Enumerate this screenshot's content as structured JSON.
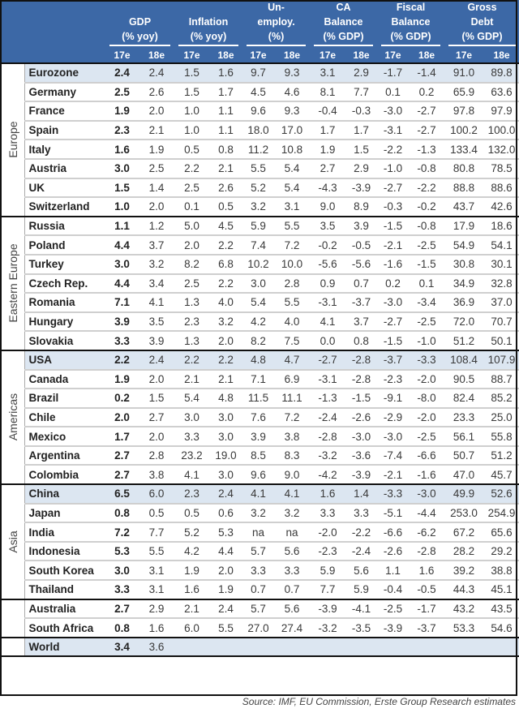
{
  "header": {
    "groups": [
      {
        "label": "GDP",
        "unit": "(% yoy)"
      },
      {
        "label": "Inflation",
        "unit": "(% yoy)"
      },
      {
        "label": "Un-\nemploy.",
        "unit": "(%)"
      },
      {
        "label": "CA\nBalance",
        "unit": "(% GDP)"
      },
      {
        "label": "Fiscal\nBalance",
        "unit": "(% GDP)"
      },
      {
        "label": "Gross\nDebt",
        "unit": "(% GDP)"
      }
    ],
    "years": [
      "17e",
      "18e"
    ]
  },
  "regions": [
    {
      "name": "Europe",
      "rows": [
        {
          "country": "Eurozone",
          "highlight": true,
          "values": [
            "2.4",
            "2.4",
            "1.5",
            "1.6",
            "9.7",
            "9.3",
            "3.1",
            "2.9",
            "-1.7",
            "-1.4",
            "91.0",
            "89.8"
          ]
        },
        {
          "country": "Germany",
          "values": [
            "2.5",
            "2.6",
            "1.5",
            "1.7",
            "4.5",
            "4.6",
            "8.1",
            "7.7",
            "0.1",
            "0.2",
            "65.9",
            "63.6"
          ]
        },
        {
          "country": "France",
          "values": [
            "1.9",
            "2.0",
            "1.0",
            "1.1",
            "9.6",
            "9.3",
            "-0.4",
            "-0.3",
            "-3.0",
            "-2.7",
            "97.8",
            "97.9"
          ]
        },
        {
          "country": "Spain",
          "values": [
            "2.3",
            "2.1",
            "1.0",
            "1.1",
            "18.0",
            "17.0",
            "1.7",
            "1.7",
            "-3.1",
            "-2.7",
            "100.2",
            "100.0"
          ]
        },
        {
          "country": "Italy",
          "values": [
            "1.6",
            "1.9",
            "0.5",
            "0.8",
            "11.2",
            "10.8",
            "1.9",
            "1.5",
            "-2.2",
            "-1.3",
            "133.4",
            "132.0"
          ]
        },
        {
          "country": "Austria",
          "values": [
            "3.0",
            "2.5",
            "2.2",
            "2.1",
            "5.5",
            "5.4",
            "2.7",
            "2.9",
            "-1.0",
            "-0.8",
            "80.8",
            "78.5"
          ]
        },
        {
          "country": "UK",
          "values": [
            "1.5",
            "1.4",
            "2.5",
            "2.6",
            "5.2",
            "5.4",
            "-4.3",
            "-3.9",
            "-2.7",
            "-2.2",
            "88.8",
            "88.6"
          ]
        },
        {
          "country": "Switzerland",
          "values": [
            "1.0",
            "2.0",
            "0.1",
            "0.5",
            "3.2",
            "3.1",
            "9.0",
            "8.9",
            "-0.3",
            "-0.2",
            "43.7",
            "42.6"
          ]
        }
      ]
    },
    {
      "name": "Eastern Europe",
      "rows": [
        {
          "country": "Russia",
          "values": [
            "1.1",
            "1.2",
            "5.0",
            "4.5",
            "5.9",
            "5.5",
            "3.5",
            "3.9",
            "-1.5",
            "-0.8",
            "17.9",
            "18.6"
          ]
        },
        {
          "country": "Poland",
          "values": [
            "4.4",
            "3.7",
            "2.0",
            "2.2",
            "7.4",
            "7.2",
            "-0.2",
            "-0.5",
            "-2.1",
            "-2.5",
            "54.9",
            "54.1"
          ]
        },
        {
          "country": "Turkey",
          "values": [
            "3.0",
            "3.2",
            "8.2",
            "6.8",
            "10.2",
            "10.0",
            "-5.6",
            "-5.6",
            "-1.6",
            "-1.5",
            "30.8",
            "30.1"
          ]
        },
        {
          "country": "Czech Rep.",
          "values": [
            "4.4",
            "3.4",
            "2.5",
            "2.2",
            "3.0",
            "2.8",
            "0.9",
            "0.7",
            "0.2",
            "0.1",
            "34.9",
            "32.8"
          ]
        },
        {
          "country": "Romania",
          "values": [
            "7.1",
            "4.1",
            "1.3",
            "4.0",
            "5.4",
            "5.5",
            "-3.1",
            "-3.7",
            "-3.0",
            "-3.4",
            "36.9",
            "37.0"
          ]
        },
        {
          "country": "Hungary",
          "values": [
            "3.9",
            "3.5",
            "2.3",
            "3.2",
            "4.2",
            "4.0",
            "4.1",
            "3.7",
            "-2.7",
            "-2.5",
            "72.0",
            "70.7"
          ]
        },
        {
          "country": "Slovakia",
          "values": [
            "3.3",
            "3.9",
            "1.3",
            "2.0",
            "8.2",
            "7.5",
            "0.0",
            "0.8",
            "-1.5",
            "-1.0",
            "51.2",
            "50.1"
          ]
        }
      ]
    },
    {
      "name": "Americas",
      "rows": [
        {
          "country": "USA",
          "highlight": true,
          "values": [
            "2.2",
            "2.4",
            "2.2",
            "2.2",
            "4.8",
            "4.7",
            "-2.7",
            "-2.8",
            "-3.7",
            "-3.3",
            "108.4",
            "107.9"
          ]
        },
        {
          "country": "Canada",
          "values": [
            "1.9",
            "2.0",
            "2.1",
            "2.1",
            "7.1",
            "6.9",
            "-3.1",
            "-2.8",
            "-2.3",
            "-2.0",
            "90.5",
            "88.7"
          ]
        },
        {
          "country": "Brazil",
          "values": [
            "0.2",
            "1.5",
            "5.4",
            "4.8",
            "11.5",
            "11.1",
            "-1.3",
            "-1.5",
            "-9.1",
            "-8.0",
            "82.4",
            "85.2"
          ]
        },
        {
          "country": "Chile",
          "values": [
            "2.0",
            "2.7",
            "3.0",
            "3.0",
            "7.6",
            "7.2",
            "-2.4",
            "-2.6",
            "-2.9",
            "-2.0",
            "23.3",
            "25.0"
          ]
        },
        {
          "country": "Mexico",
          "values": [
            "1.7",
            "2.0",
            "3.3",
            "3.0",
            "3.9",
            "3.8",
            "-2.8",
            "-3.0",
            "-3.0",
            "-2.5",
            "56.1",
            "55.8"
          ]
        },
        {
          "country": "Argentina",
          "values": [
            "2.7",
            "2.8",
            "23.2",
            "19.0",
            "8.5",
            "8.3",
            "-3.2",
            "-3.6",
            "-7.4",
            "-6.6",
            "50.7",
            "51.2"
          ]
        },
        {
          "country": "Colombia",
          "values": [
            "2.7",
            "3.8",
            "4.1",
            "3.0",
            "9.6",
            "9.0",
            "-4.2",
            "-3.9",
            "-2.1",
            "-1.6",
            "47.0",
            "45.7"
          ]
        }
      ]
    },
    {
      "name": "Asia",
      "rows": [
        {
          "country": "China",
          "highlight": true,
          "values": [
            "6.5",
            "6.0",
            "2.3",
            "2.4",
            "4.1",
            "4.1",
            "1.6",
            "1.4",
            "-3.3",
            "-3.0",
            "49.9",
            "52.6"
          ]
        },
        {
          "country": "Japan",
          "values": [
            "0.8",
            "0.5",
            "0.5",
            "0.6",
            "3.2",
            "3.2",
            "3.3",
            "3.3",
            "-5.1",
            "-4.4",
            "253.0",
            "254.9"
          ]
        },
        {
          "country": "India",
          "values": [
            "7.2",
            "7.7",
            "5.2",
            "5.3",
            "na",
            "na",
            "-2.0",
            "-2.2",
            "-6.6",
            "-6.2",
            "67.2",
            "65.6"
          ]
        },
        {
          "country": "Indonesia",
          "values": [
            "5.3",
            "5.5",
            "4.2",
            "4.4",
            "5.7",
            "5.6",
            "-2.3",
            "-2.4",
            "-2.6",
            "-2.8",
            "28.2",
            "29.2"
          ]
        },
        {
          "country": "South Korea",
          "values": [
            "3.0",
            "3.1",
            "1.9",
            "2.0",
            "3.3",
            "3.3",
            "5.9",
            "5.6",
            "1.1",
            "1.6",
            "39.2",
            "38.8"
          ]
        },
        {
          "country": "Thailand",
          "values": [
            "3.3",
            "3.1",
            "1.6",
            "1.9",
            "0.7",
            "0.7",
            "7.7",
            "5.9",
            "-0.4",
            "-0.5",
            "44.3",
            "45.1"
          ]
        }
      ]
    },
    {
      "name": "",
      "rows": [
        {
          "country": "Australia",
          "values": [
            "2.7",
            "2.9",
            "2.1",
            "2.4",
            "5.7",
            "5.6",
            "-3.9",
            "-4.1",
            "-2.5",
            "-1.7",
            "43.2",
            "43.5"
          ]
        },
        {
          "country": "South Africa",
          "values": [
            "0.8",
            "1.6",
            "6.0",
            "5.5",
            "27.0",
            "27.4",
            "-3.2",
            "-3.5",
            "-3.9",
            "-3.7",
            "53.3",
            "54.6"
          ]
        }
      ]
    },
    {
      "name": "",
      "rows": [
        {
          "country": "World",
          "highlight": true,
          "values": [
            "3.4",
            "3.6",
            "",
            "",
            "",
            "",
            "",
            "",
            "",
            "",
            "",
            ""
          ]
        }
      ]
    }
  ],
  "source": "Source: IMF, EU Commission, Erste Group Research estimates",
  "colors": {
    "header_bg": "#3C68A6",
    "highlight_row": "#DCE6F1"
  }
}
